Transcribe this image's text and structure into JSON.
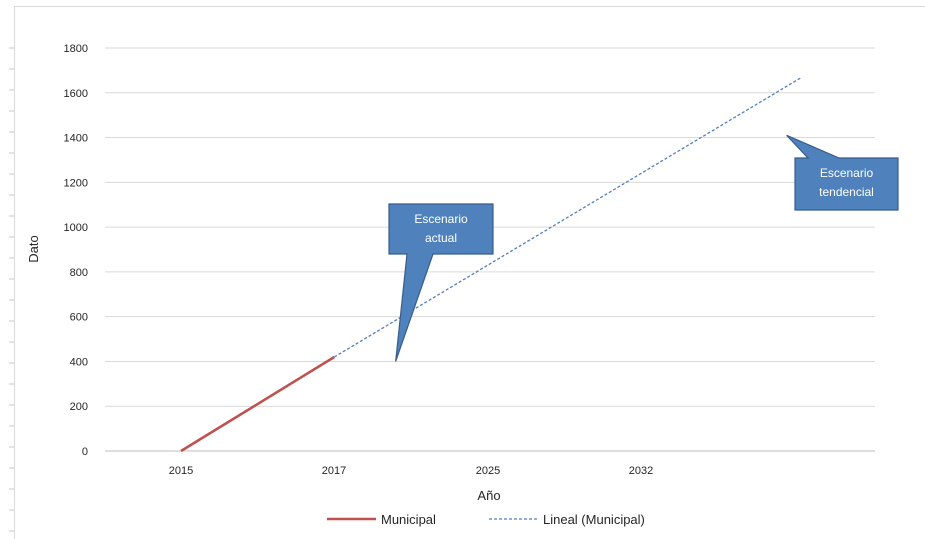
{
  "chart_data": {
    "type": "line",
    "title": "",
    "xlabel": "Año",
    "ylabel": "Dato",
    "categories": [
      "2015",
      "2017",
      "2025",
      "2032"
    ],
    "ylim": [
      0,
      1800
    ],
    "yticks": [
      0,
      200,
      400,
      600,
      800,
      1000,
      1200,
      1400,
      1600,
      1800
    ],
    "grid": true,
    "legend_position": "bottom",
    "series": [
      {
        "name": "Municipal",
        "color": "#c0504d",
        "style": "solid",
        "x": [
          0,
          1
        ],
        "values": [
          0,
          420
        ]
      },
      {
        "name": "Lineal (Municipal)",
        "color": "#4f81bd",
        "style": "dashed",
        "x": [
          1,
          4.05
        ],
        "values": [
          420,
          1670
        ]
      }
    ],
    "annotations": [
      {
        "id": "actual",
        "line1": "Escenario",
        "line2": "actual",
        "point_x": 1.4,
        "point_y": 400
      },
      {
        "id": "tendencial",
        "line1": "Escenario",
        "line2": "tendencial",
        "point_x": 3.95,
        "point_y": 1410
      }
    ],
    "colors": {
      "callout_fill": "#4f81bd",
      "callout_border": "#385d8a",
      "grid": "#d9d9d9"
    }
  }
}
